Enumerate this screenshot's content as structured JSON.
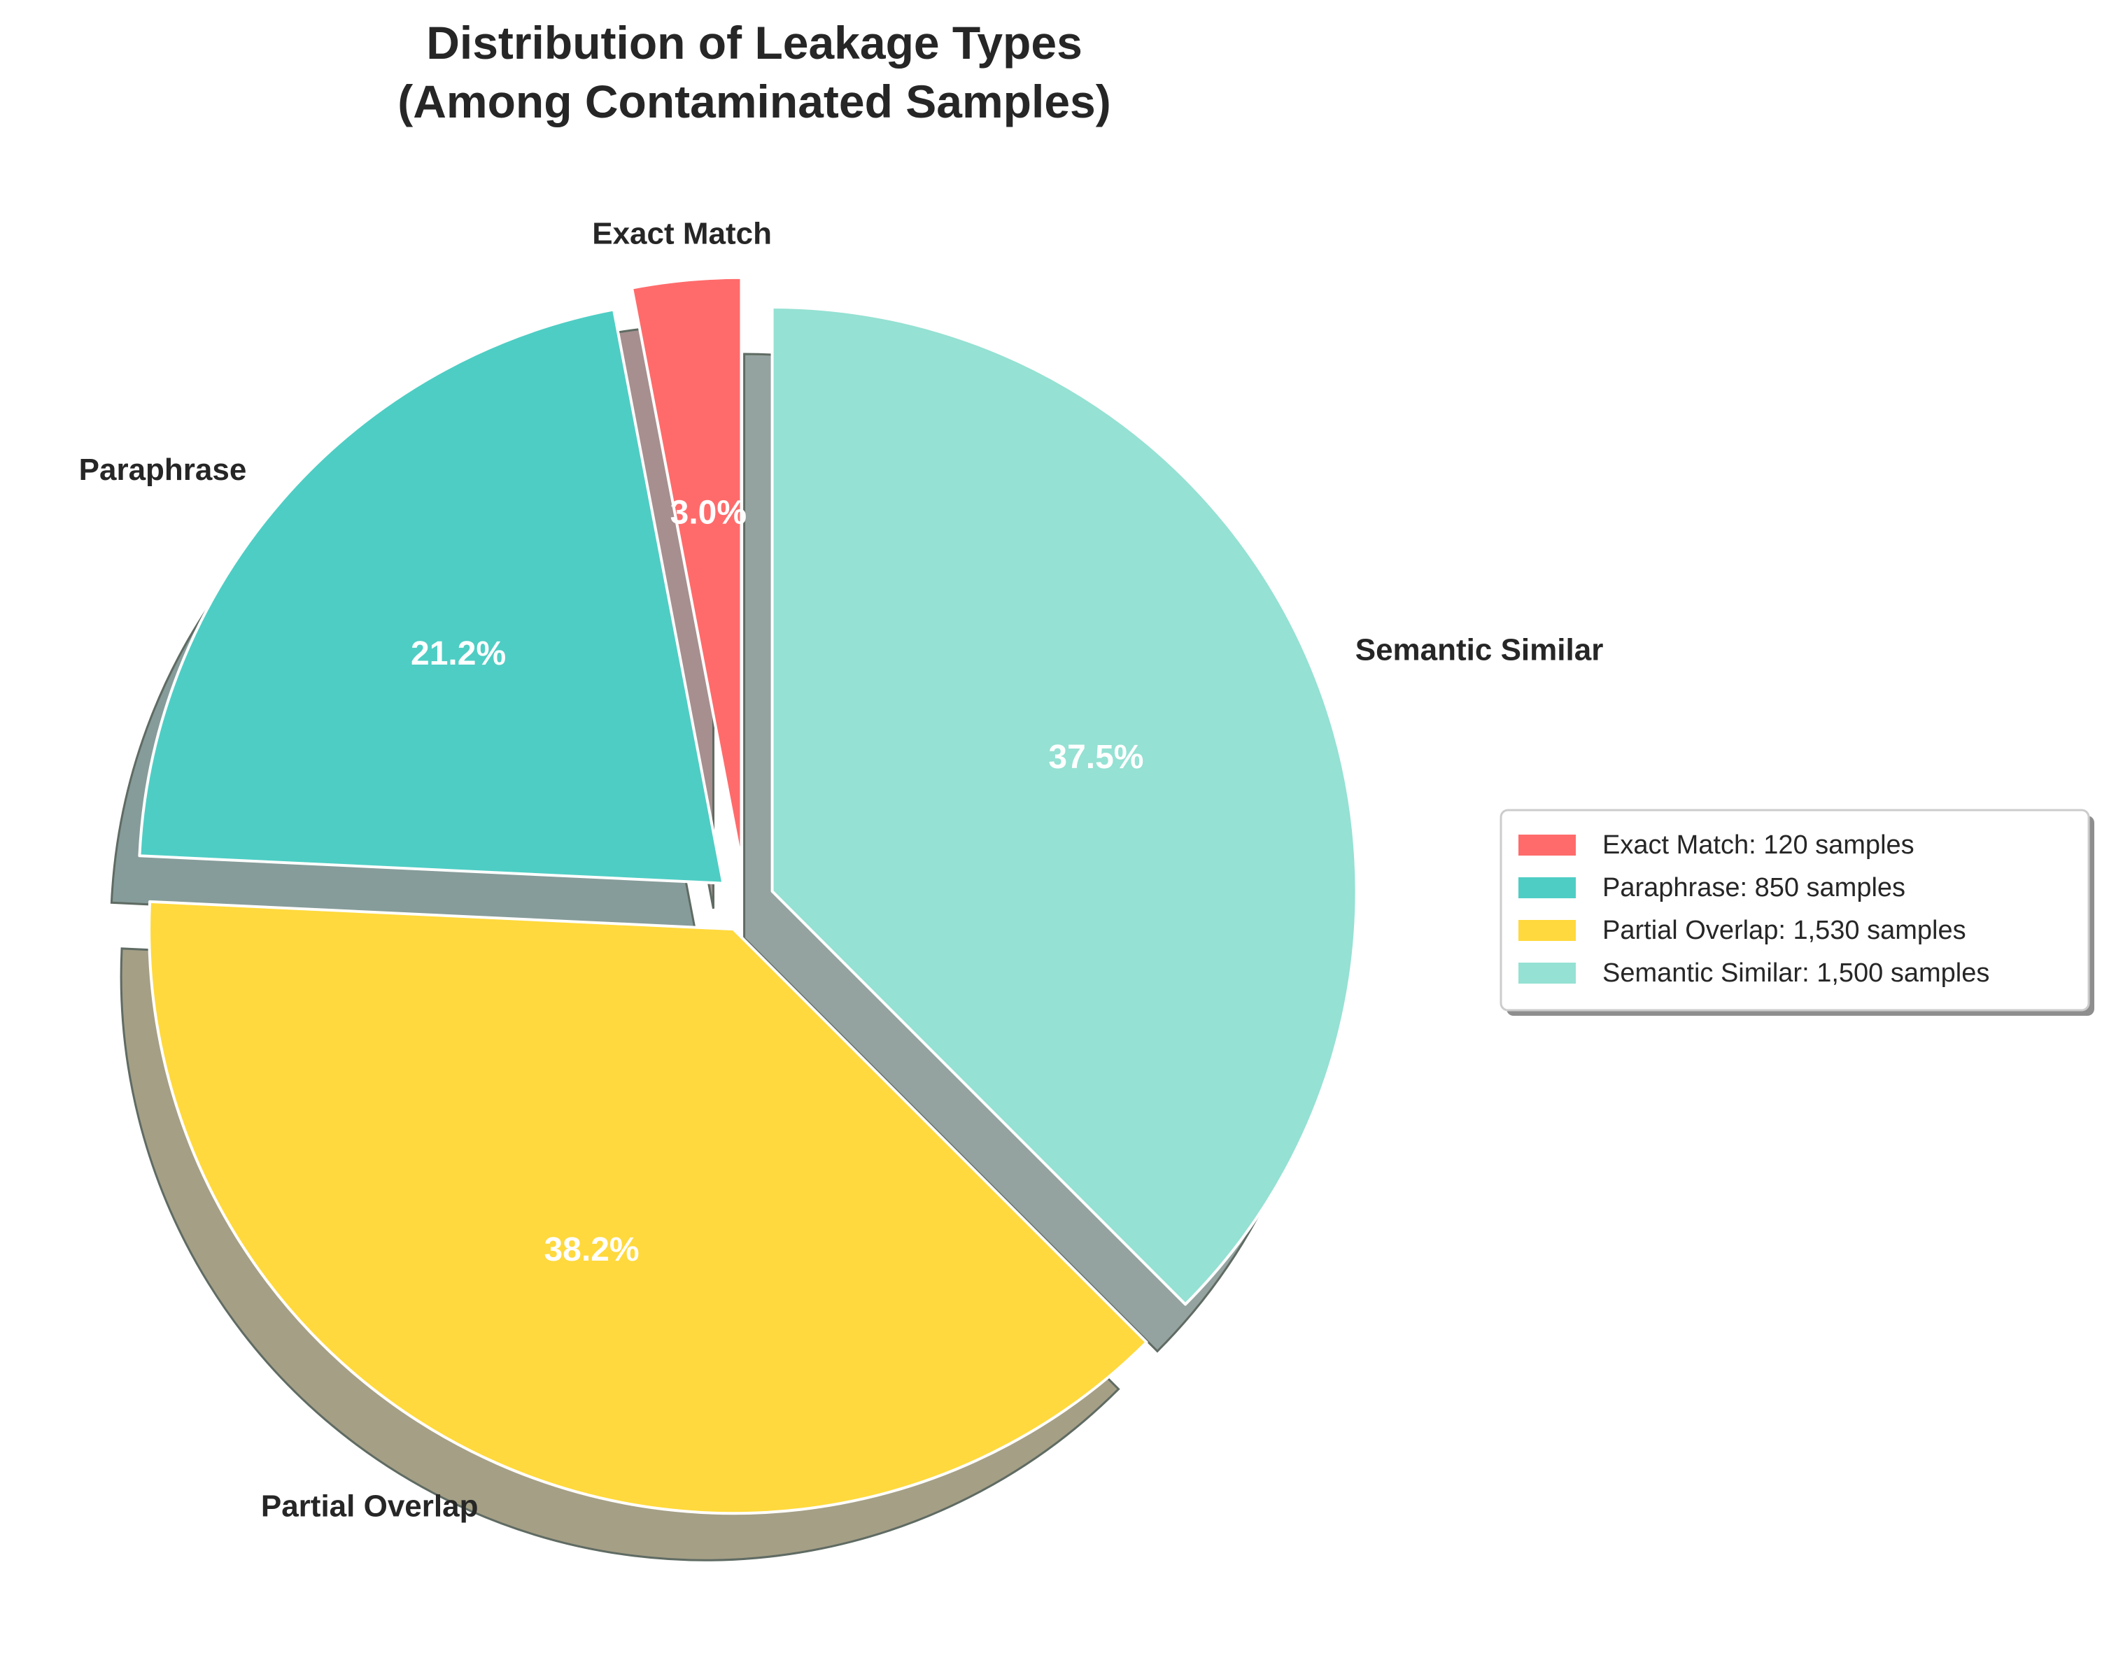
{
  "chart_data": {
    "type": "pie",
    "title": [
      "Distribution of Leakage Types",
      "(Among Contaminated Samples)"
    ],
    "categories": [
      "Exact Match",
      "Paraphrase",
      "Partial Overlap",
      "Semantic Similar"
    ],
    "values": [
      120,
      850,
      1530,
      1500
    ],
    "percent_labels": [
      "3.0%",
      "21.2%",
      "38.2%",
      "37.5%"
    ],
    "legend": [
      "Exact Match: 120 samples",
      "Paraphrase: 850 samples",
      "Partial Overlap: 1,530 samples",
      "Semantic Similar: 1,500 samples"
    ],
    "colors": [
      "#FF6B6B",
      "#4ECDC4",
      "#FFD93D",
      "#95E1D3"
    ],
    "shadow_colors": [
      "#A78F8F",
      "#869C9A",
      "#A59F86",
      "#95A3A0"
    ],
    "start_angle_deg": 90,
    "direction": "counterclockwise",
    "exploded": true,
    "shadow": true,
    "legend_position": "right"
  }
}
